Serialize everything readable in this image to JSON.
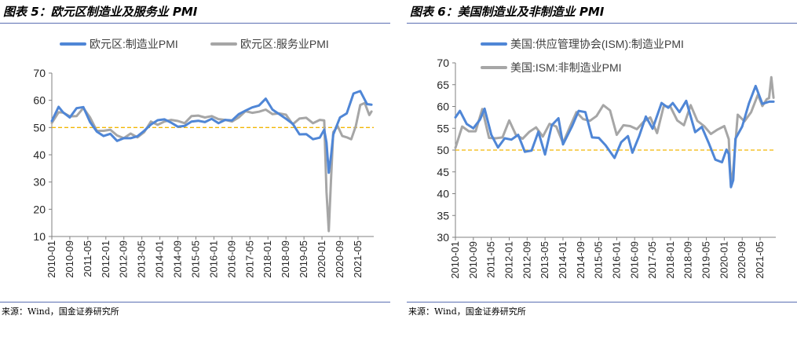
{
  "panels": [
    {
      "title": "图表 5：欧元区制造业及服务业 PMI",
      "source": "来源：Wind，国金证券研究所"
    },
    {
      "title": "图表 6：美国制造业及非制造业 PMI",
      "source": "来源：Wind，国金证券研究所"
    }
  ],
  "chart_data": [
    {
      "type": "line",
      "title": "",
      "xlabel": "",
      "ylabel": "",
      "ylim": [
        10,
        70
      ],
      "yticks": [
        10,
        20,
        30,
        40,
        50,
        60,
        70
      ],
      "xrange": [
        "2010-01",
        "2021-12"
      ],
      "xtick_labels": [
        "2010-01",
        "2010-09",
        "2011-05",
        "2012-01",
        "2012-09",
        "2013-05",
        "2014-01",
        "2014-09",
        "2015-05",
        "2016-01",
        "2016-09",
        "2017-05",
        "2018-01",
        "2018-09",
        "2019-05",
        "2020-01",
        "2020-09",
        "2021-05"
      ],
      "reference_line": {
        "value": 50,
        "color": "#f2b705",
        "style": "dashed"
      },
      "legend_position": "top",
      "grid": false,
      "series": [
        {
          "name": "欧元区:制造业PMI",
          "color": "#4f86d6",
          "points": [
            [
              "2010-01",
              52.4
            ],
            [
              "2010-04",
              57.6
            ],
            [
              "2010-06",
              55.6
            ],
            [
              "2010-09",
              53.7
            ],
            [
              "2010-12",
              57.1
            ],
            [
              "2011-03",
              57.5
            ],
            [
              "2011-06",
              52.0
            ],
            [
              "2011-09",
              48.5
            ],
            [
              "2011-12",
              46.9
            ],
            [
              "2012-03",
              47.7
            ],
            [
              "2012-06",
              45.1
            ],
            [
              "2012-09",
              46.1
            ],
            [
              "2012-12",
              46.1
            ],
            [
              "2013-03",
              46.8
            ],
            [
              "2013-06",
              48.8
            ],
            [
              "2013-09",
              51.1
            ],
            [
              "2013-12",
              52.7
            ],
            [
              "2014-03",
              53.0
            ],
            [
              "2014-06",
              51.8
            ],
            [
              "2014-09",
              50.3
            ],
            [
              "2014-12",
              50.6
            ],
            [
              "2015-03",
              52.2
            ],
            [
              "2015-06",
              52.5
            ],
            [
              "2015-09",
              52.0
            ],
            [
              "2015-12",
              53.2
            ],
            [
              "2016-03",
              51.6
            ],
            [
              "2016-06",
              52.8
            ],
            [
              "2016-09",
              52.6
            ],
            [
              "2016-12",
              54.9
            ],
            [
              "2017-03",
              56.2
            ],
            [
              "2017-06",
              57.4
            ],
            [
              "2017-09",
              58.1
            ],
            [
              "2017-12",
              60.6
            ],
            [
              "2018-03",
              56.6
            ],
            [
              "2018-06",
              54.9
            ],
            [
              "2018-09",
              53.2
            ],
            [
              "2018-12",
              51.4
            ],
            [
              "2019-03",
              47.5
            ],
            [
              "2019-06",
              47.6
            ],
            [
              "2019-09",
              45.7
            ],
            [
              "2019-12",
              46.3
            ],
            [
              "2020-02",
              49.2
            ],
            [
              "2020-03",
              44.5
            ],
            [
              "2020-04",
              33.4
            ],
            [
              "2020-05",
              39.4
            ],
            [
              "2020-06",
              47.4
            ],
            [
              "2020-09",
              53.7
            ],
            [
              "2020-12",
              55.2
            ],
            [
              "2021-03",
              62.5
            ],
            [
              "2021-06",
              63.4
            ],
            [
              "2021-09",
              58.6
            ],
            [
              "2021-11",
              58.4
            ]
          ]
        },
        {
          "name": "欧元区:服务业PMI",
          "color": "#a6a6a6",
          "points": [
            [
              "2010-01",
              51.7
            ],
            [
              "2010-04",
              55.6
            ],
            [
              "2010-06",
              55.5
            ],
            [
              "2010-09",
              54.1
            ],
            [
              "2010-12",
              54.2
            ],
            [
              "2011-03",
              57.2
            ],
            [
              "2011-06",
              53.7
            ],
            [
              "2011-09",
              48.8
            ],
            [
              "2011-12",
              48.8
            ],
            [
              "2012-03",
              49.2
            ],
            [
              "2012-06",
              47.1
            ],
            [
              "2012-09",
              46.1
            ],
            [
              "2012-12",
              47.8
            ],
            [
              "2013-03",
              46.4
            ],
            [
              "2013-06",
              48.3
            ],
            [
              "2013-09",
              52.2
            ],
            [
              "2013-12",
              51.0
            ],
            [
              "2014-03",
              52.2
            ],
            [
              "2014-06",
              52.8
            ],
            [
              "2014-09",
              52.4
            ],
            [
              "2014-12",
              51.6
            ],
            [
              "2015-03",
              54.2
            ],
            [
              "2015-06",
              54.4
            ],
            [
              "2015-09",
              53.7
            ],
            [
              "2015-12",
              54.2
            ],
            [
              "2016-03",
              53.1
            ],
            [
              "2016-06",
              52.8
            ],
            [
              "2016-09",
              52.2
            ],
            [
              "2016-12",
              53.7
            ],
            [
              "2017-03",
              56.0
            ],
            [
              "2017-06",
              55.4
            ],
            [
              "2017-09",
              55.8
            ],
            [
              "2017-12",
              56.6
            ],
            [
              "2018-03",
              54.9
            ],
            [
              "2018-06",
              55.2
            ],
            [
              "2018-09",
              54.7
            ],
            [
              "2018-12",
              51.2
            ],
            [
              "2019-03",
              53.3
            ],
            [
              "2019-06",
              53.6
            ],
            [
              "2019-09",
              51.6
            ],
            [
              "2019-12",
              52.8
            ],
            [
              "2020-02",
              52.6
            ],
            [
              "2020-03",
              26.4
            ],
            [
              "2020-04",
              12.0
            ],
            [
              "2020-05",
              30.5
            ],
            [
              "2020-06",
              48.3
            ],
            [
              "2020-08",
              50.5
            ],
            [
              "2020-10",
              46.9
            ],
            [
              "2020-12",
              46.4
            ],
            [
              "2021-02",
              45.7
            ],
            [
              "2021-04",
              50.5
            ],
            [
              "2021-06",
              58.3
            ],
            [
              "2021-08",
              59.0
            ],
            [
              "2021-10",
              54.6
            ],
            [
              "2021-11",
              55.9
            ]
          ]
        }
      ]
    },
    {
      "type": "line",
      "title": "",
      "xlabel": "",
      "ylabel": "",
      "ylim": [
        30,
        70
      ],
      "yticks": [
        30,
        35,
        40,
        45,
        50,
        55,
        60,
        65,
        70
      ],
      "xrange": [
        "2010-01",
        "2021-12"
      ],
      "xtick_labels": [
        "2010-01",
        "2010-09",
        "2011-05",
        "2012-01",
        "2012-09",
        "2013-05",
        "2014-01",
        "2014-09",
        "2015-05",
        "2016-01",
        "2016-09",
        "2017-05",
        "2018-01",
        "2018-09",
        "2019-05",
        "2020-01",
        "2020-09",
        "2021-05"
      ],
      "reference_line": {
        "value": 50,
        "color": "#f2b705",
        "style": "dashed"
      },
      "legend_position": "top",
      "grid": false,
      "series": [
        {
          "name": "美国:供应管理协会(ISM):制造业PMI",
          "color": "#4f86d6",
          "points": [
            [
              "2010-01",
              57.5
            ],
            [
              "2010-03",
              59.0
            ],
            [
              "2010-06",
              56.0
            ],
            [
              "2010-09",
              55.0
            ],
            [
              "2010-12",
              57.0
            ],
            [
              "2011-02",
              59.5
            ],
            [
              "2011-05",
              53.5
            ],
            [
              "2011-08",
              50.6
            ],
            [
              "2011-11",
              52.7
            ],
            [
              "2012-02",
              52.4
            ],
            [
              "2012-05",
              53.5
            ],
            [
              "2012-08",
              49.6
            ],
            [
              "2012-11",
              49.9
            ],
            [
              "2013-02",
              54.2
            ],
            [
              "2013-05",
              49.0
            ],
            [
              "2013-08",
              55.7
            ],
            [
              "2013-11",
              57.3
            ],
            [
              "2014-01",
              51.3
            ],
            [
              "2014-05",
              55.4
            ],
            [
              "2014-08",
              59.0
            ],
            [
              "2014-11",
              58.7
            ],
            [
              "2015-02",
              52.9
            ],
            [
              "2015-05",
              52.8
            ],
            [
              "2015-08",
              51.1
            ],
            [
              "2015-12",
              48.2
            ],
            [
              "2016-03",
              51.8
            ],
            [
              "2016-06",
              53.2
            ],
            [
              "2016-08",
              49.4
            ],
            [
              "2016-11",
              53.2
            ],
            [
              "2017-02",
              57.7
            ],
            [
              "2017-05",
              54.9
            ],
            [
              "2017-09",
              60.8
            ],
            [
              "2017-12",
              59.7
            ],
            [
              "2018-02",
              60.8
            ],
            [
              "2018-05",
              58.7
            ],
            [
              "2018-08",
              61.3
            ],
            [
              "2018-12",
              54.1
            ],
            [
              "2019-03",
              55.3
            ],
            [
              "2019-06",
              51.7
            ],
            [
              "2019-09",
              47.8
            ],
            [
              "2019-12",
              47.2
            ],
            [
              "2020-02",
              50.1
            ],
            [
              "2020-03",
              49.1
            ],
            [
              "2020-04",
              41.5
            ],
            [
              "2020-05",
              43.1
            ],
            [
              "2020-06",
              52.6
            ],
            [
              "2020-09",
              55.4
            ],
            [
              "2020-12",
              60.7
            ],
            [
              "2021-03",
              64.7
            ],
            [
              "2021-06",
              60.6
            ],
            [
              "2021-09",
              61.1
            ],
            [
              "2021-11",
              61.1
            ]
          ]
        },
        {
          "name": "美国:ISM:非制造业PMI",
          "color": "#a6a6a6",
          "points": [
            [
              "2010-01",
              50.5
            ],
            [
              "2010-04",
              55.4
            ],
            [
              "2010-07",
              54.3
            ],
            [
              "2010-10",
              54.3
            ],
            [
              "2011-01",
              59.4
            ],
            [
              "2011-04",
              52.8
            ],
            [
              "2011-07",
              52.7
            ],
            [
              "2011-10",
              52.9
            ],
            [
              "2012-01",
              56.8
            ],
            [
              "2012-04",
              53.5
            ],
            [
              "2012-07",
              52.6
            ],
            [
              "2012-10",
              54.2
            ],
            [
              "2013-01",
              55.2
            ],
            [
              "2013-04",
              53.1
            ],
            [
              "2013-07",
              56.0
            ],
            [
              "2013-10",
              55.4
            ],
            [
              "2014-01",
              51.6
            ],
            [
              "2014-04",
              55.2
            ],
            [
              "2014-07",
              58.7
            ],
            [
              "2014-10",
              57.1
            ],
            [
              "2015-01",
              56.7
            ],
            [
              "2015-04",
              57.8
            ],
            [
              "2015-07",
              60.3
            ],
            [
              "2015-10",
              59.1
            ],
            [
              "2016-01",
              53.5
            ],
            [
              "2016-04",
              55.7
            ],
            [
              "2016-07",
              55.5
            ],
            [
              "2016-10",
              54.8
            ],
            [
              "2017-01",
              56.5
            ],
            [
              "2017-04",
              57.5
            ],
            [
              "2017-07",
              53.9
            ],
            [
              "2017-10",
              60.1
            ],
            [
              "2018-01",
              59.9
            ],
            [
              "2018-04",
              56.8
            ],
            [
              "2018-07",
              55.7
            ],
            [
              "2018-10",
              60.3
            ],
            [
              "2019-01",
              56.7
            ],
            [
              "2019-04",
              55.5
            ],
            [
              "2019-07",
              53.7
            ],
            [
              "2019-10",
              54.7
            ],
            [
              "2020-01",
              55.5
            ],
            [
              "2020-03",
              52.5
            ],
            [
              "2020-04",
              41.8
            ],
            [
              "2020-05",
              45.4
            ],
            [
              "2020-07",
              58.1
            ],
            [
              "2020-10",
              56.6
            ],
            [
              "2021-01",
              58.7
            ],
            [
              "2021-04",
              62.7
            ],
            [
              "2021-06",
              60.1
            ],
            [
              "2021-08",
              61.7
            ],
            [
              "2021-09",
              61.9
            ],
            [
              "2021-10",
              66.7
            ],
            [
              "2021-11",
              62.0
            ]
          ]
        }
      ]
    }
  ]
}
